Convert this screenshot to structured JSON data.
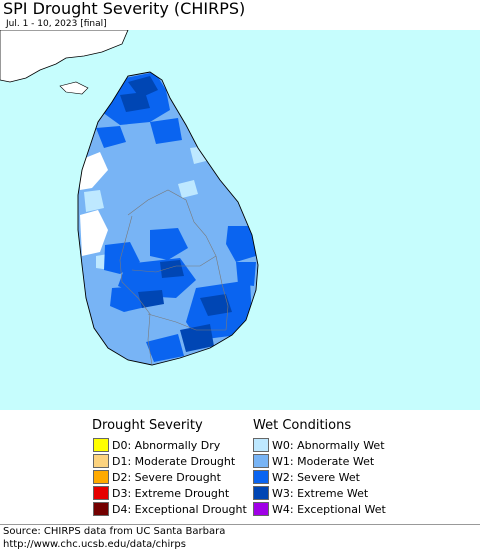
{
  "header": {
    "title": "SPI Drought Severity (CHIRPS)",
    "subtitle": "Jul. 1 - 10, 2023 [final]"
  },
  "map": {
    "sea_color": "#c6fdfd",
    "land_color": "#ffffff",
    "island_fill": "#78b4f5"
  },
  "legend": {
    "drought": {
      "title": "Drought Severity",
      "items": [
        {
          "label": "D0: Abnormally Dry",
          "color": "#ffff00"
        },
        {
          "label": "D1: Moderate Drought",
          "color": "#fcd37f"
        },
        {
          "label": "D2: Severe Drought",
          "color": "#ffaa00"
        },
        {
          "label": "D3: Extreme Drought",
          "color": "#e60000"
        },
        {
          "label": "D4: Exceptional Drought",
          "color": "#730000"
        }
      ]
    },
    "wet": {
      "title": "Wet Conditions",
      "items": [
        {
          "label": "W0: Abnormally Wet",
          "color": "#bee8ff"
        },
        {
          "label": "W1: Moderate Wet",
          "color": "#78b4f5"
        },
        {
          "label": "W2: Severe Wet",
          "color": "#0a64f0"
        },
        {
          "label": "W3: Extreme Wet",
          "color": "#0046b4"
        },
        {
          "label": "W4: Exceptional Wet",
          "color": "#a000e6"
        }
      ]
    }
  },
  "footer": {
    "source": "Source: CHIRPS data from UC Santa Barbara",
    "url": "http://www.chc.ucsb.edu/data/chirps"
  }
}
